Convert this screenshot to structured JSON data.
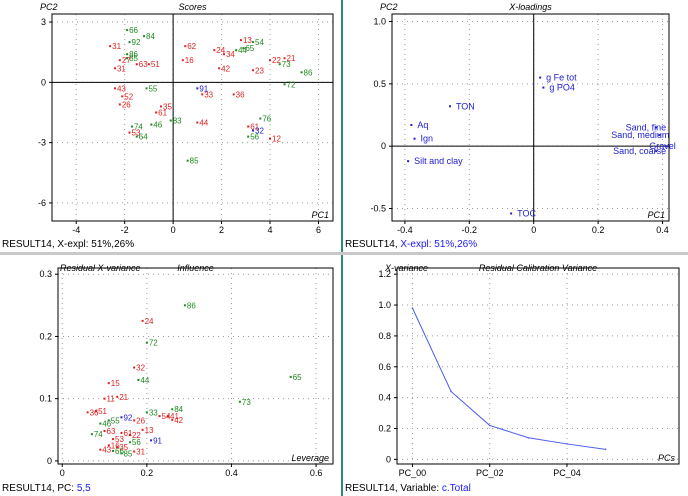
{
  "colors": {
    "red": "#e02020",
    "green": "#1f8a1f",
    "blue": "#2020d0",
    "axis": "#000000",
    "grid": "#9a9a9a",
    "line": "#4a5cf0"
  },
  "panels": [
    {
      "id": "scores",
      "title": "Scores",
      "ylabel": "PC2",
      "xlabel": "PC1",
      "status": {
        "prefix": "RESULT14, X-expl: 51%,26%",
        "highlight": ""
      },
      "chart_data": {
        "type": "scatter",
        "xlim": [
          -5,
          6.6
        ],
        "ylim": [
          -6.9,
          3.4
        ],
        "xticks": [
          -4,
          -2,
          0,
          2,
          4,
          6
        ],
        "yticks": [
          -6,
          -3,
          0,
          3
        ],
        "ytick_labels": [
          "-6",
          "-3",
          "0",
          "3"
        ],
        "zero_lines": true,
        "points": [
          {
            "label": "66",
            "x": -1.9,
            "y": 2.6,
            "c": "green"
          },
          {
            "label": "84",
            "x": -1.2,
            "y": 2.3,
            "c": "green"
          },
          {
            "label": "92",
            "x": -1.8,
            "y": 2.0,
            "c": "green"
          },
          {
            "label": "31",
            "x": -2.6,
            "y": 1.8,
            "c": "red"
          },
          {
            "label": "86",
            "x": -1.9,
            "y": 1.4,
            "c": "green"
          },
          {
            "label": "85",
            "x": -1.9,
            "y": 1.2,
            "c": "green"
          },
          {
            "label": "27",
            "x": -2.2,
            "y": 1.1,
            "c": "red"
          },
          {
            "label": "63",
            "x": -1.5,
            "y": 0.9,
            "c": "red"
          },
          {
            "label": "51",
            "x": -1.0,
            "y": 0.9,
            "c": "red"
          },
          {
            "label": "31",
            "x": -2.4,
            "y": 0.7,
            "c": "red"
          },
          {
            "label": "43",
            "x": -2.4,
            "y": -0.3,
            "c": "red"
          },
          {
            "label": "55",
            "x": -1.1,
            "y": -0.3,
            "c": "green"
          },
          {
            "label": "52",
            "x": -2.1,
            "y": -0.7,
            "c": "red"
          },
          {
            "label": "26",
            "x": -2.2,
            "y": -1.1,
            "c": "red"
          },
          {
            "label": "35",
            "x": -0.5,
            "y": -1.2,
            "c": "red"
          },
          {
            "label": "61",
            "x": -0.7,
            "y": -1.5,
            "c": "red"
          },
          {
            "label": "83",
            "x": -0.1,
            "y": -1.9,
            "c": "green"
          },
          {
            "label": "74",
            "x": -1.7,
            "y": -2.2,
            "c": "green"
          },
          {
            "label": "46",
            "x": -0.9,
            "y": -2.1,
            "c": "green"
          },
          {
            "label": "53",
            "x": -1.8,
            "y": -2.5,
            "c": "red"
          },
          {
            "label": "64",
            "x": -1.5,
            "y": -2.7,
            "c": "green"
          },
          {
            "label": "62",
            "x": 0.5,
            "y": 1.8,
            "c": "red"
          },
          {
            "label": "16",
            "x": 0.4,
            "y": 1.1,
            "c": "red"
          },
          {
            "label": "24",
            "x": 1.7,
            "y": 1.6,
            "c": "red"
          },
          {
            "label": "34",
            "x": 2.1,
            "y": 1.4,
            "c": "red"
          },
          {
            "label": "44",
            "x": 2.6,
            "y": 1.6,
            "c": "green"
          },
          {
            "label": "13",
            "x": 2.8,
            "y": 2.1,
            "c": "red"
          },
          {
            "label": "65",
            "x": 2.9,
            "y": 1.7,
            "c": "green"
          },
          {
            "label": "54",
            "x": 3.3,
            "y": 2.0,
            "c": "green"
          },
          {
            "label": "22",
            "x": 4.0,
            "y": 1.1,
            "c": "red"
          },
          {
            "label": "21",
            "x": 4.6,
            "y": 1.2,
            "c": "red"
          },
          {
            "label": "73",
            "x": 4.4,
            "y": 0.9,
            "c": "green"
          },
          {
            "label": "86",
            "x": 5.3,
            "y": 0.5,
            "c": "green"
          },
          {
            "label": "42",
            "x": 1.9,
            "y": 0.7,
            "c": "red"
          },
          {
            "label": "23",
            "x": 3.3,
            "y": 0.6,
            "c": "red"
          },
          {
            "label": "72",
            "x": 4.6,
            "y": -0.1,
            "c": "green"
          },
          {
            "label": "91",
            "x": 1.0,
            "y": -0.3,
            "c": "blue"
          },
          {
            "label": "33",
            "x": 1.2,
            "y": -0.6,
            "c": "red"
          },
          {
            "label": "36",
            "x": 2.5,
            "y": -0.6,
            "c": "red"
          },
          {
            "label": "44",
            "x": 1.0,
            "y": -2.0,
            "c": "red"
          },
          {
            "label": "76",
            "x": 3.6,
            "y": -1.8,
            "c": "green"
          },
          {
            "label": "61",
            "x": 3.1,
            "y": -2.2,
            "c": "red"
          },
          {
            "label": "32",
            "x": 3.3,
            "y": -2.4,
            "c": "blue"
          },
          {
            "label": "56",
            "x": 3.1,
            "y": -2.7,
            "c": "green"
          },
          {
            "label": "12",
            "x": 4.0,
            "y": -2.8,
            "c": "red"
          },
          {
            "label": "85",
            "x": 0.6,
            "y": -3.9,
            "c": "green"
          }
        ]
      }
    },
    {
      "id": "xloadings",
      "title": "X-loadings",
      "ylabel": "PC2",
      "xlabel": "PC1",
      "status": {
        "prefix": "RESULT14, ",
        "highlight": "X-expl: 51%,26%"
      },
      "chart_data": {
        "type": "scatter",
        "xlim": [
          -0.44,
          0.42
        ],
        "ylim": [
          -0.6,
          1.06
        ],
        "xticks": [
          -0.4,
          -0.2,
          0,
          0.2,
          0.4
        ],
        "yticks": [
          -0.5,
          0,
          0.5,
          1.0
        ],
        "ytick_labels": [
          "-0.5",
          "0",
          "0.5",
          "1.0"
        ],
        "zero_lines": true,
        "points": [
          {
            "label": "g Fe tot",
            "x": 0.02,
            "y": 0.55,
            "c": "blue"
          },
          {
            "label": "g PO4",
            "x": 0.03,
            "y": 0.47,
            "c": "blue"
          },
          {
            "label": "TON",
            "x": -0.26,
            "y": 0.32,
            "c": "blue"
          },
          {
            "label": "Aq",
            "x": -0.38,
            "y": 0.17,
            "c": "blue"
          },
          {
            "label": "Ign",
            "x": -0.37,
            "y": 0.06,
            "c": "blue"
          },
          {
            "label": "Silt and clay",
            "x": -0.39,
            "y": -0.12,
            "c": "blue"
          },
          {
            "label": "TOC",
            "x": -0.07,
            "y": -0.54,
            "c": "blue"
          },
          {
            "label": "Sand, fine",
            "x": 0.38,
            "y": 0.15,
            "c": "blue"
          },
          {
            "label": "Sand, medium",
            "x": 0.39,
            "y": 0.09,
            "c": "blue"
          },
          {
            "label": "Sand, coarse",
            "x": 0.38,
            "y": -0.04,
            "c": "blue"
          },
          {
            "label": "Gravel",
            "x": 0.41,
            "y": 0.0,
            "c": "blue"
          }
        ]
      }
    },
    {
      "id": "influence",
      "title": "Influence",
      "ylabel": "Residual X-variance",
      "xlabel": "Leverage",
      "status": {
        "prefix": "RESULT14, PC: ",
        "highlight": "5,5"
      },
      "chart_data": {
        "type": "scatter",
        "xlim": [
          -0.01,
          0.64
        ],
        "ylim": [
          -0.005,
          0.31
        ],
        "xticks": [
          0,
          0.2,
          0.4,
          0.6
        ],
        "yticks": [
          0,
          0.1,
          0.2,
          0.3
        ],
        "ytick_labels": [
          "0",
          "0.1",
          "0.2",
          "0.3"
        ],
        "zero_lines": false,
        "points": [
          {
            "label": "86",
            "x": 0.29,
            "y": 0.25,
            "c": "green"
          },
          {
            "label": "24",
            "x": 0.19,
            "y": 0.225,
            "c": "red"
          },
          {
            "label": "72",
            "x": 0.2,
            "y": 0.19,
            "c": "green"
          },
          {
            "label": "32",
            "x": 0.17,
            "y": 0.15,
            "c": "red"
          },
          {
            "label": "44",
            "x": 0.18,
            "y": 0.13,
            "c": "green"
          },
          {
            "label": "15",
            "x": 0.11,
            "y": 0.125,
            "c": "red"
          },
          {
            "label": "65",
            "x": 0.54,
            "y": 0.135,
            "c": "green"
          },
          {
            "label": "73",
            "x": 0.42,
            "y": 0.095,
            "c": "green"
          },
          {
            "label": "21",
            "x": 0.13,
            "y": 0.103,
            "c": "red"
          },
          {
            "label": "11",
            "x": 0.1,
            "y": 0.1,
            "c": "red"
          },
          {
            "label": "36",
            "x": 0.06,
            "y": 0.078,
            "c": "red"
          },
          {
            "label": "51",
            "x": 0.08,
            "y": 0.08,
            "c": "red"
          },
          {
            "label": "92",
            "x": 0.14,
            "y": 0.07,
            "c": "blue"
          },
          {
            "label": "84",
            "x": 0.26,
            "y": 0.083,
            "c": "green"
          },
          {
            "label": "41",
            "x": 0.25,
            "y": 0.072,
            "c": "red"
          },
          {
            "label": "42",
            "x": 0.26,
            "y": 0.066,
            "c": "red"
          },
          {
            "label": "33",
            "x": 0.2,
            "y": 0.078,
            "c": "green"
          },
          {
            "label": "54",
            "x": 0.23,
            "y": 0.072,
            "c": "red"
          },
          {
            "label": "26",
            "x": 0.17,
            "y": 0.065,
            "c": "red"
          },
          {
            "label": "46",
            "x": 0.09,
            "y": 0.06,
            "c": "green"
          },
          {
            "label": "55",
            "x": 0.11,
            "y": 0.065,
            "c": "green"
          },
          {
            "label": "91",
            "x": 0.21,
            "y": 0.033,
            "c": "blue"
          },
          {
            "label": "61",
            "x": 0.14,
            "y": 0.045,
            "c": "red"
          },
          {
            "label": "22",
            "x": 0.16,
            "y": 0.042,
            "c": "red"
          },
          {
            "label": "74",
            "x": 0.07,
            "y": 0.043,
            "c": "green"
          },
          {
            "label": "63",
            "x": 0.1,
            "y": 0.048,
            "c": "red"
          },
          {
            "label": "53",
            "x": 0.12,
            "y": 0.035,
            "c": "red"
          },
          {
            "label": "16",
            "x": 0.11,
            "y": 0.025,
            "c": "red"
          },
          {
            "label": "56",
            "x": 0.16,
            "y": 0.03,
            "c": "green"
          },
          {
            "label": "43",
            "x": 0.09,
            "y": 0.018,
            "c": "red"
          },
          {
            "label": "66",
            "x": 0.12,
            "y": 0.016,
            "c": "green"
          },
          {
            "label": "85",
            "x": 0.14,
            "y": 0.012,
            "c": "green"
          },
          {
            "label": "31",
            "x": 0.17,
            "y": 0.015,
            "c": "red"
          },
          {
            "label": "35",
            "x": 0.13,
            "y": 0.022,
            "c": "red"
          },
          {
            "label": "13",
            "x": 0.19,
            "y": 0.05,
            "c": "red"
          }
        ]
      }
    },
    {
      "id": "calvar",
      "title": "Residual Calibration Variance",
      "ylabel": "X-variance",
      "xlabel": "PCs",
      "status": {
        "prefix": "RESULT14, Variable: ",
        "highlight": "c.Total"
      },
      "chart_data": {
        "type": "line",
        "xlim": [
          -0.4,
          6.9
        ],
        "ylim": [
          -0.03,
          1.24
        ],
        "xticks": [
          0,
          2,
          4
        ],
        "xtick_labels": [
          "PC_00",
          "PC_02",
          "PC_04"
        ],
        "yticks": [
          0,
          0.2,
          0.4,
          0.6,
          0.8,
          1.0,
          1.2
        ],
        "ytick_labels": [
          "0",
          "0.2",
          "0.4",
          "0.6",
          "0.8",
          "1.0",
          "1.2"
        ],
        "zero_lines": false,
        "x": [
          0,
          1,
          2,
          3,
          4,
          5
        ],
        "y": [
          0.98,
          0.44,
          0.22,
          0.14,
          0.1,
          0.065
        ]
      }
    }
  ]
}
